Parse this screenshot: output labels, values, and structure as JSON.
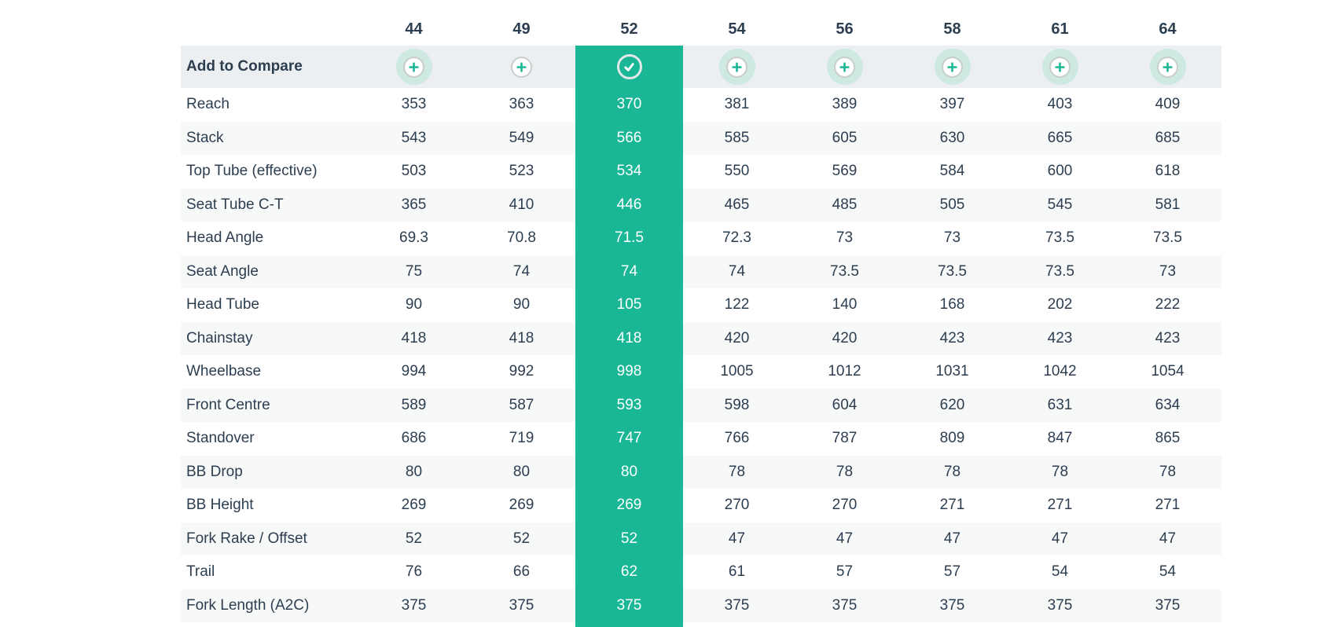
{
  "page": {
    "background": "#ffffff"
  },
  "table": {
    "sizes": [
      "44",
      "49",
      "52",
      "54",
      "56",
      "58",
      "61",
      "64"
    ],
    "selected_size": "52",
    "selected_column_index": 2,
    "compare_row": {
      "label": "Add to Compare",
      "buttons": [
        {
          "size": "44",
          "icon": "plus-icon",
          "halo": true,
          "selected": false
        },
        {
          "size": "49",
          "icon": "plus-icon",
          "halo": false,
          "selected": false
        },
        {
          "size": "52",
          "icon": "check-icon",
          "halo": false,
          "selected": true
        },
        {
          "size": "54",
          "icon": "plus-icon",
          "halo": true,
          "selected": false
        },
        {
          "size": "56",
          "icon": "plus-icon",
          "halo": true,
          "selected": false
        },
        {
          "size": "58",
          "icon": "plus-icon",
          "halo": true,
          "selected": false
        },
        {
          "size": "61",
          "icon": "plus-icon",
          "halo": true,
          "selected": false
        },
        {
          "size": "64",
          "icon": "plus-icon",
          "halo": true,
          "selected": false
        }
      ]
    },
    "rows": [
      {
        "label": "Reach",
        "values": [
          353,
          363,
          370,
          381,
          389,
          397,
          403,
          409
        ]
      },
      {
        "label": "Stack",
        "values": [
          543,
          549,
          566,
          585,
          605,
          630,
          665,
          685
        ]
      },
      {
        "label": "Top Tube (effective)",
        "values": [
          503,
          523,
          534,
          550,
          569,
          584,
          600,
          618
        ]
      },
      {
        "label": "Seat Tube C-T",
        "values": [
          365,
          410,
          446,
          465,
          485,
          505,
          545,
          581
        ]
      },
      {
        "label": "Head Angle",
        "values": [
          69.3,
          70.8,
          71.5,
          72.3,
          73,
          73,
          73.5,
          73.5
        ]
      },
      {
        "label": "Seat Angle",
        "values": [
          75,
          74,
          74,
          74,
          73.5,
          73.5,
          73.5,
          73
        ]
      },
      {
        "label": "Head Tube",
        "values": [
          90,
          90,
          105,
          122,
          140,
          168,
          202,
          222
        ]
      },
      {
        "label": "Chainstay",
        "values": [
          418,
          418,
          418,
          420,
          420,
          423,
          423,
          423
        ]
      },
      {
        "label": "Wheelbase",
        "values": [
          994,
          992,
          998,
          1005,
          1012,
          1031,
          1042,
          1054
        ]
      },
      {
        "label": "Front Centre",
        "values": [
          589,
          587,
          593,
          598,
          604,
          620,
          631,
          634
        ]
      },
      {
        "label": "Standover",
        "values": [
          686,
          719,
          747,
          766,
          787,
          809,
          847,
          865
        ]
      },
      {
        "label": "BB Drop",
        "values": [
          80,
          80,
          80,
          78,
          78,
          78,
          78,
          78
        ]
      },
      {
        "label": "BB Height",
        "values": [
          269,
          269,
          269,
          270,
          270,
          271,
          271,
          271
        ]
      },
      {
        "label": "Fork Rake / Offset",
        "values": [
          52,
          52,
          52,
          47,
          47,
          47,
          47,
          47
        ]
      },
      {
        "label": "Trail",
        "values": [
          76,
          66,
          62,
          61,
          57,
          57,
          54,
          54
        ]
      },
      {
        "label": "Fork Length (A2C)",
        "values": [
          375,
          375,
          375,
          375,
          375,
          375,
          375,
          375
        ]
      }
    ],
    "colors": {
      "accent_teal": "#19b795",
      "halo_teal": "#cde9e2",
      "compare_row_bg": "#eceff1",
      "alt_row_bg": "#f7f8f8",
      "text": "#2c3e50",
      "selected_text": "#ffffff",
      "plus_ring": "#c9cdce",
      "check_ring": "#e3e7e8"
    }
  }
}
